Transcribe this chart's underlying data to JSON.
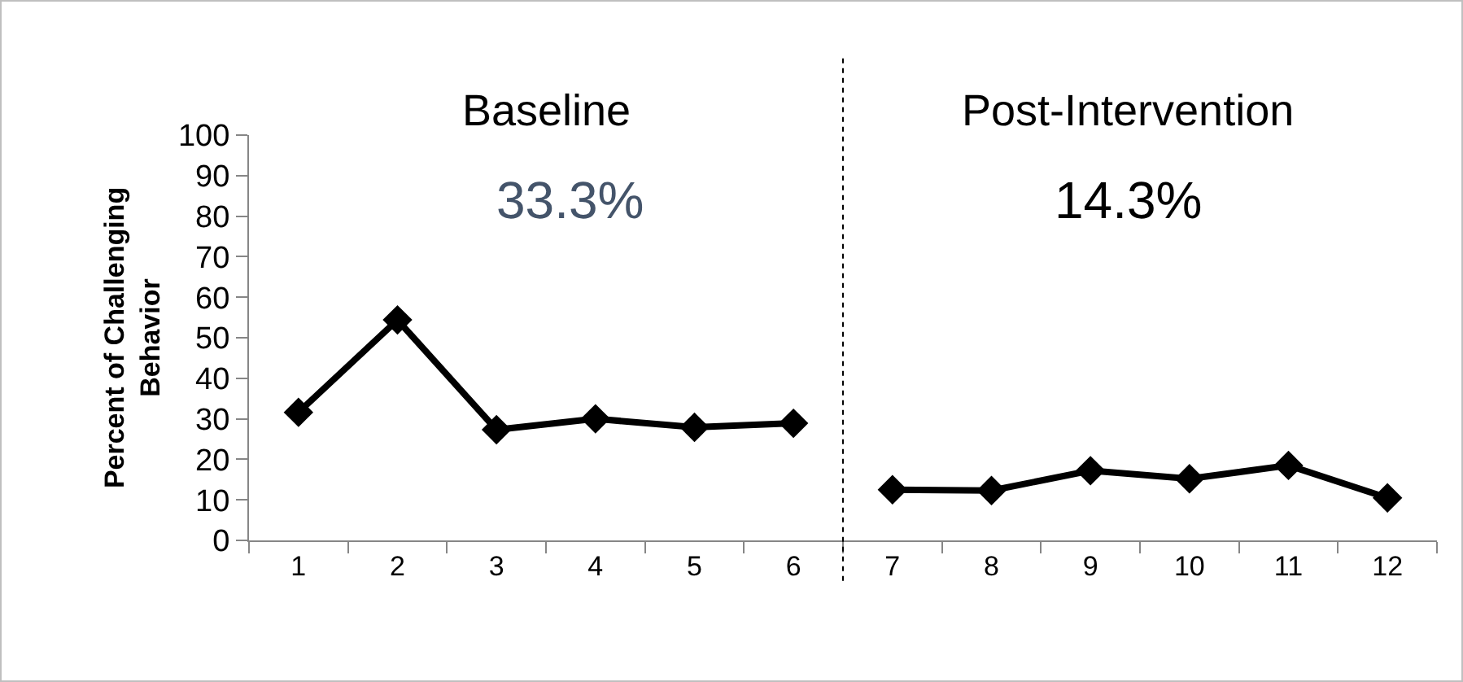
{
  "chart_data": {
    "type": "line",
    "ylabel": "Percent of Challenging Behavior",
    "x": [
      1,
      2,
      3,
      4,
      5,
      6,
      7,
      8,
      9,
      10,
      11,
      12
    ],
    "xlim": [
      0.5,
      12.5
    ],
    "xticks": [
      1,
      2,
      3,
      4,
      5,
      6,
      7,
      8,
      9,
      10,
      11,
      12
    ],
    "ylim": [
      0,
      100
    ],
    "yticks": [
      0,
      10,
      20,
      30,
      40,
      50,
      60,
      70,
      80,
      90,
      100
    ],
    "series": [
      {
        "color": "#000000",
        "values": [
          31.6,
          54.4,
          27.3,
          30,
          27.9,
          28.9,
          null,
          null,
          null,
          null,
          null,
          null
        ]
      },
      {
        "color": "#000000",
        "values": [
          null,
          null,
          null,
          null,
          null,
          null,
          12.5,
          12.3,
          17.2,
          15.2,
          18.5,
          10.5
        ]
      }
    ],
    "ref_lines": [
      {
        "axis": "x",
        "value": 6.5,
        "line_style": "dotted",
        "color": "#000000"
      }
    ],
    "annotations": [
      "Baseline",
      "Post-Intervention",
      "33.3%",
      "14.3%"
    ],
    "marker": "diamond",
    "line_style": "solid",
    "grid": false
  }
}
